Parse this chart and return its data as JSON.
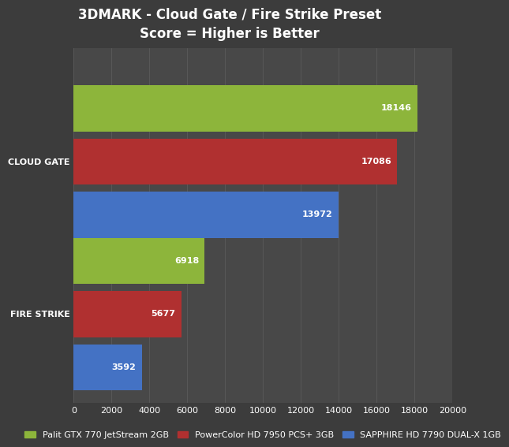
{
  "title_line1": "3DMARK - Cloud Gate / Fire Strike Preset",
  "title_line2": "Score = Higher is Better",
  "categories": [
    "CLOUD GATE",
    "FIRE STRIKE"
  ],
  "series": [
    {
      "name": "Palit GTX 770 JetStream 2GB",
      "color": "#8db53b",
      "values": [
        18146,
        6918
      ]
    },
    {
      "name": "PowerColor HD 7950 PCS+ 3GB",
      "color": "#b03030",
      "values": [
        17086,
        5677
      ]
    },
    {
      "name": "SAPPHIRE HD 7790 DUAL-X 1GB",
      "color": "#4472c4",
      "values": [
        13972,
        3592
      ]
    }
  ],
  "xlim": [
    0,
    20000
  ],
  "xticks": [
    0,
    2000,
    4000,
    6000,
    8000,
    10000,
    12000,
    14000,
    16000,
    18000,
    20000
  ],
  "background_color": "#3c3c3c",
  "plot_bg_color": "#484848",
  "text_color": "#ffffff",
  "grid_color": "#5a5a5a",
  "title_fontsize": 12,
  "tick_fontsize": 8,
  "value_fontsize": 8,
  "legend_fontsize": 8,
  "category_fontsize": 8
}
